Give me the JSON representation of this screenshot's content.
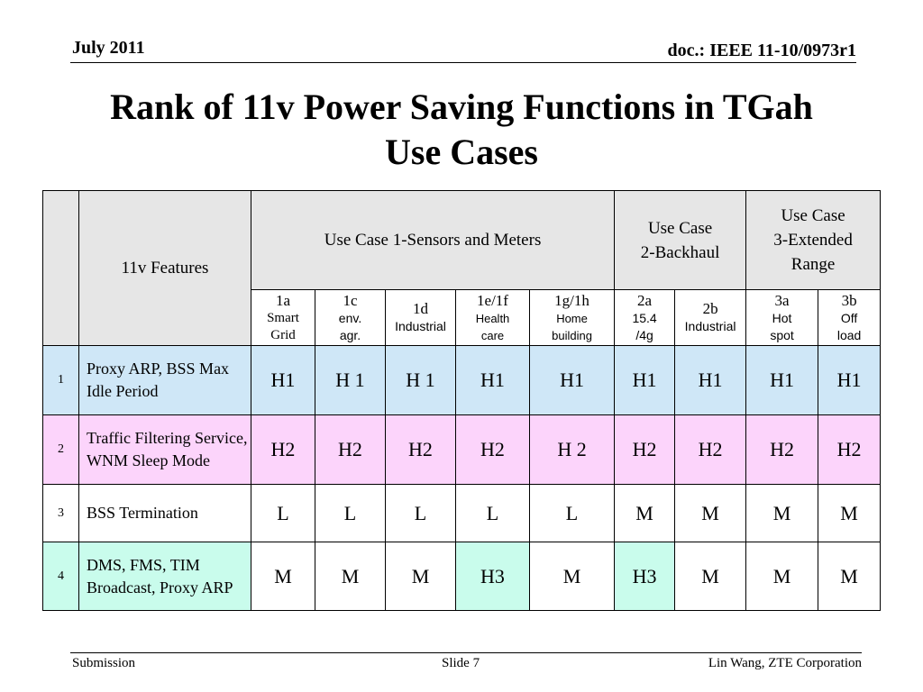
{
  "header": {
    "date": "July 2011",
    "doc": "doc.: IEEE 11-10/0973r1"
  },
  "title": {
    "line1": "Rank of 11v Power Saving Functions in TGah",
    "line2": "Use Cases"
  },
  "table": {
    "features_header": "11v Features",
    "group_headers": [
      {
        "label": "Use Case 1-Sensors and Meters"
      },
      {
        "label": "Use Case 2-Backhaul"
      },
      {
        "label": "Use Case 3-Extended Range"
      }
    ],
    "sub_headers": [
      {
        "code": "1a",
        "desc": "Smart Grid"
      },
      {
        "code": "1c",
        "desc": "env. agr."
      },
      {
        "code": "1d",
        "desc": "Industrial"
      },
      {
        "code": "1e/1f",
        "desc": "Health care"
      },
      {
        "code": "1g/1h",
        "desc": "Home building"
      },
      {
        "code": "2a",
        "desc": "15.4 /4g"
      },
      {
        "code": "2b",
        "desc": "Industrial"
      },
      {
        "code": "3a",
        "desc": "Hot spot"
      },
      {
        "code": "3b",
        "desc": "Off load"
      }
    ],
    "rows": [
      {
        "num": "1",
        "feature": "Proxy ARP, BSS Max Idle Period",
        "values": [
          "H1",
          "H 1",
          "H 1",
          "H1",
          "H1",
          "H1",
          "H1",
          "H1",
          "H1"
        ]
      },
      {
        "num": "2",
        "feature": "Traffic Filtering Service, WNM Sleep Mode",
        "values": [
          "H2",
          "H2",
          "H2",
          "H2",
          "H 2",
          "H2",
          "H2",
          "H2",
          "H2"
        ]
      },
      {
        "num": "3",
        "feature": "BSS Termination",
        "values": [
          "L",
          "L",
          "L",
          "L",
          "L",
          "M",
          "M",
          "M",
          "M"
        ]
      },
      {
        "num": "4",
        "feature": "DMS, FMS, TIM Broadcast, Proxy ARP",
        "values": [
          "M",
          "M",
          "M",
          "H3",
          "M",
          "H3",
          "M",
          "M",
          "M"
        ]
      }
    ]
  },
  "footer": {
    "left": "Submission",
    "center": "Slide 7",
    "right": "Lin Wang, ZTE Corporation"
  },
  "colors": {
    "row1": "#cfe7f7",
    "row2": "#fcd4fb",
    "row4_highlight": "#c9fcec",
    "header_gray": "#e6e6e6"
  }
}
